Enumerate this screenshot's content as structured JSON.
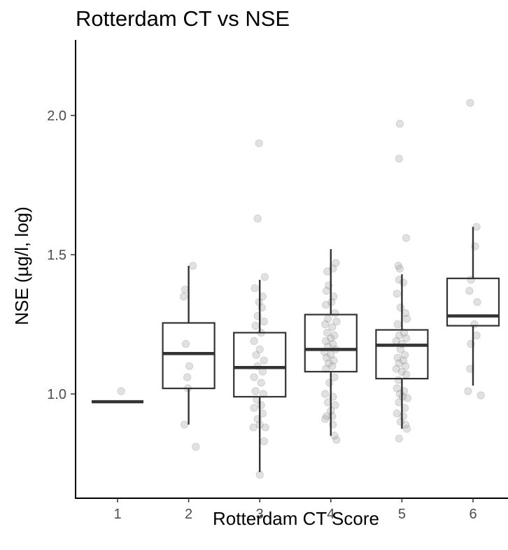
{
  "chart_data": {
    "type": "box",
    "title": "Rotterdam CT vs NSE",
    "xlabel": "Rotterdam CT Score",
    "ylabel": "NSE (µg/l, log)",
    "categories": [
      "1",
      "2",
      "3",
      "4",
      "5",
      "6"
    ],
    "y_ticks": [
      "1.0",
      "1.5",
      "2.0"
    ],
    "ylim": [
      0.68,
      2.27
    ],
    "grid": false,
    "boxes": [
      {
        "category": "1",
        "q1": 0.972,
        "median": 0.972,
        "q3": 0.972,
        "whisker_low": 0.972,
        "whisker_high": 0.972
      },
      {
        "category": "2",
        "q1": 1.02,
        "median": 1.145,
        "q3": 1.255,
        "whisker_low": 0.89,
        "whisker_high": 1.46
      },
      {
        "category": "3",
        "q1": 0.99,
        "median": 1.095,
        "q3": 1.22,
        "whisker_low": 0.72,
        "whisker_high": 1.41
      },
      {
        "category": "4",
        "q1": 1.08,
        "median": 1.16,
        "q3": 1.285,
        "whisker_low": 0.85,
        "whisker_high": 1.52
      },
      {
        "category": "5",
        "q1": 1.055,
        "median": 1.175,
        "q3": 1.23,
        "whisker_low": 0.875,
        "whisker_high": 1.43
      },
      {
        "category": "6",
        "q1": 1.245,
        "median": 1.28,
        "q3": 1.415,
        "whisker_low": 1.03,
        "whisker_high": 1.6
      }
    ],
    "points": [
      {
        "x": 1.05,
        "y": 1.01
      },
      {
        "x": 1.93,
        "y": 1.35
      },
      {
        "x": 1.95,
        "y": 1.375
      },
      {
        "x": 2.06,
        "y": 1.46
      },
      {
        "x": 1.96,
        "y": 1.18
      },
      {
        "x": 2.01,
        "y": 1.1
      },
      {
        "x": 1.98,
        "y": 1.06
      },
      {
        "x": 1.99,
        "y": 1.02
      },
      {
        "x": 1.94,
        "y": 0.89
      },
      {
        "x": 2.1,
        "y": 0.81
      },
      {
        "x": 2.99,
        "y": 1.9
      },
      {
        "x": 2.97,
        "y": 1.63
      },
      {
        "x": 3.07,
        "y": 1.42
      },
      {
        "x": 2.93,
        "y": 1.38
      },
      {
        "x": 3.04,
        "y": 1.35
      },
      {
        "x": 2.99,
        "y": 1.33
      },
      {
        "x": 3.03,
        "y": 1.31
      },
      {
        "x": 2.97,
        "y": 1.28
      },
      {
        "x": 3.06,
        "y": 1.26
      },
      {
        "x": 2.94,
        "y": 1.245
      },
      {
        "x": 3.02,
        "y": 1.22
      },
      {
        "x": 2.92,
        "y": 1.19
      },
      {
        "x": 3.0,
        "y": 1.16
      },
      {
        "x": 2.95,
        "y": 1.14
      },
      {
        "x": 3.06,
        "y": 1.12
      },
      {
        "x": 2.97,
        "y": 1.1
      },
      {
        "x": 3.04,
        "y": 1.08
      },
      {
        "x": 2.92,
        "y": 1.06
      },
      {
        "x": 3.02,
        "y": 1.04
      },
      {
        "x": 2.94,
        "y": 1.01
      },
      {
        "x": 3.05,
        "y": 1.0
      },
      {
        "x": 2.96,
        "y": 0.98
      },
      {
        "x": 3.02,
        "y": 0.96
      },
      {
        "x": 2.92,
        "y": 0.95
      },
      {
        "x": 3.04,
        "y": 0.93
      },
      {
        "x": 2.97,
        "y": 0.91
      },
      {
        "x": 3.0,
        "y": 0.89
      },
      {
        "x": 2.91,
        "y": 0.88
      },
      {
        "x": 3.08,
        "y": 0.88
      },
      {
        "x": 3.06,
        "y": 0.83
      },
      {
        "x": 3.0,
        "y": 0.71
      },
      {
        "x": 3.95,
        "y": 1.44
      },
      {
        "x": 4.07,
        "y": 1.47
      },
      {
        "x": 4.03,
        "y": 1.45
      },
      {
        "x": 3.97,
        "y": 1.39
      },
      {
        "x": 3.94,
        "y": 1.37
      },
      {
        "x": 4.04,
        "y": 1.35
      },
      {
        "x": 4.01,
        "y": 1.33
      },
      {
        "x": 3.93,
        "y": 1.32
      },
      {
        "x": 4.06,
        "y": 1.29
      },
      {
        "x": 3.96,
        "y": 1.27
      },
      {
        "x": 4.08,
        "y": 1.26
      },
      {
        "x": 3.92,
        "y": 1.25
      },
      {
        "x": 4.02,
        "y": 1.24
      },
      {
        "x": 3.95,
        "y": 1.22
      },
      {
        "x": 4.05,
        "y": 1.21
      },
      {
        "x": 4.0,
        "y": 1.2
      },
      {
        "x": 3.93,
        "y": 1.19
      },
      {
        "x": 4.03,
        "y": 1.18
      },
      {
        "x": 3.96,
        "y": 1.17
      },
      {
        "x": 4.07,
        "y": 1.16
      },
      {
        "x": 3.91,
        "y": 1.15
      },
      {
        "x": 4.0,
        "y": 1.14
      },
      {
        "x": 3.94,
        "y": 1.13
      },
      {
        "x": 4.04,
        "y": 1.12
      },
      {
        "x": 3.97,
        "y": 1.11
      },
      {
        "x": 4.02,
        "y": 1.1
      },
      {
        "x": 3.93,
        "y": 1.09
      },
      {
        "x": 4.05,
        "y": 1.06
      },
      {
        "x": 3.98,
        "y": 1.04
      },
      {
        "x": 3.92,
        "y": 1.0
      },
      {
        "x": 4.03,
        "y": 0.99
      },
      {
        "x": 3.96,
        "y": 0.97
      },
      {
        "x": 4.06,
        "y": 0.96
      },
      {
        "x": 4.0,
        "y": 0.94
      },
      {
        "x": 3.94,
        "y": 0.92
      },
      {
        "x": 4.02,
        "y": 0.92
      },
      {
        "x": 3.92,
        "y": 0.91
      },
      {
        "x": 4.03,
        "y": 0.89
      },
      {
        "x": 4.05,
        "y": 0.85
      },
      {
        "x": 4.08,
        "y": 0.835
      },
      {
        "x": 4.97,
        "y": 1.97
      },
      {
        "x": 4.96,
        "y": 1.845
      },
      {
        "x": 5.06,
        "y": 1.56
      },
      {
        "x": 4.95,
        "y": 1.46
      },
      {
        "x": 4.97,
        "y": 1.45
      },
      {
        "x": 4.96,
        "y": 1.41
      },
      {
        "x": 5.02,
        "y": 1.4
      },
      {
        "x": 4.93,
        "y": 1.36
      },
      {
        "x": 4.98,
        "y": 1.31
      },
      {
        "x": 5.05,
        "y": 1.29
      },
      {
        "x": 5.07,
        "y": 1.27
      },
      {
        "x": 4.94,
        "y": 1.25
      },
      {
        "x": 5.03,
        "y": 1.22
      },
      {
        "x": 4.96,
        "y": 1.21
      },
      {
        "x": 5.06,
        "y": 1.2
      },
      {
        "x": 4.92,
        "y": 1.19
      },
      {
        "x": 5.0,
        "y": 1.18
      },
      {
        "x": 4.98,
        "y": 1.16
      },
      {
        "x": 5.04,
        "y": 1.14
      },
      {
        "x": 4.94,
        "y": 1.13
      },
      {
        "x": 5.02,
        "y": 1.12
      },
      {
        "x": 4.96,
        "y": 1.11
      },
      {
        "x": 5.05,
        "y": 1.1
      },
      {
        "x": 4.92,
        "y": 1.09
      },
      {
        "x": 5.0,
        "y": 1.08
      },
      {
        "x": 5.06,
        "y": 1.07
      },
      {
        "x": 4.95,
        "y": 1.05
      },
      {
        "x": 4.93,
        "y": 1.02
      },
      {
        "x": 5.03,
        "y": 1.01
      },
      {
        "x": 4.97,
        "y": 1.0
      },
      {
        "x": 5.01,
        "y": 0.99
      },
      {
        "x": 5.08,
        "y": 0.985
      },
      {
        "x": 4.96,
        "y": 0.97
      },
      {
        "x": 5.04,
        "y": 0.95
      },
      {
        "x": 4.93,
        "y": 0.93
      },
      {
        "x": 5.02,
        "y": 0.92
      },
      {
        "x": 4.98,
        "y": 0.9
      },
      {
        "x": 5.05,
        "y": 0.89
      },
      {
        "x": 5.07,
        "y": 0.875
      },
      {
        "x": 4.96,
        "y": 0.84
      },
      {
        "x": 5.96,
        "y": 2.045
      },
      {
        "x": 6.05,
        "y": 1.6
      },
      {
        "x": 6.03,
        "y": 1.53
      },
      {
        "x": 5.97,
        "y": 1.41
      },
      {
        "x": 5.95,
        "y": 1.37
      },
      {
        "x": 6.06,
        "y": 1.33
      },
      {
        "x": 6.02,
        "y": 1.25
      },
      {
        "x": 6.05,
        "y": 1.21
      },
      {
        "x": 5.97,
        "y": 1.18
      },
      {
        "x": 5.96,
        "y": 1.09
      },
      {
        "x": 5.93,
        "y": 1.01
      },
      {
        "x": 6.11,
        "y": 0.995
      }
    ]
  }
}
